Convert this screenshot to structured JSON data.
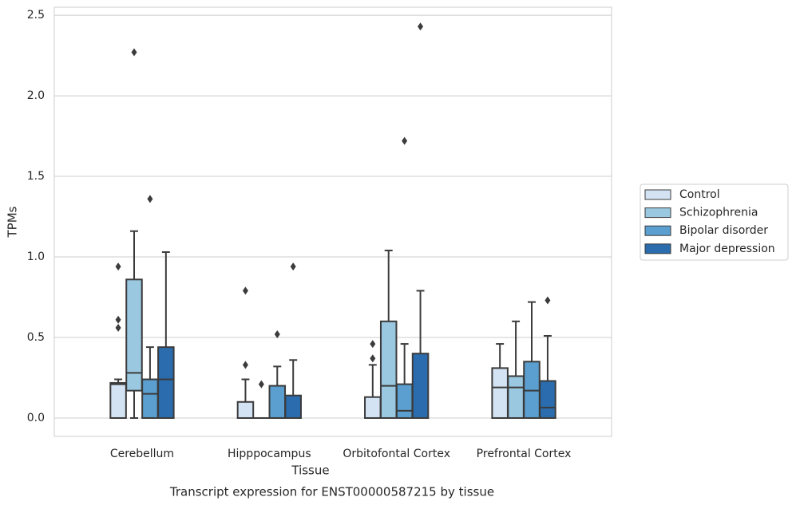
{
  "chart_data": {
    "type": "box",
    "xlabel": "Tissue",
    "ylabel": "TPMs",
    "title": "Transcript expression for ENST00000587215 by tissue",
    "categories": [
      "Cerebellum",
      "Hipppocampus",
      "Orbitofontal Cortex",
      "Prefrontal Cortex"
    ],
    "ylim": [
      -0.114,
      2.55
    ],
    "yticks": [
      {
        "value": 0,
        "label": "0.0"
      },
      0.5,
      {
        "value": 1,
        "label": "1.0"
      },
      1.5,
      {
        "value": 2,
        "label": "2.0"
      },
      2.5
    ],
    "grid": true,
    "legend": "right",
    "series": [
      {
        "name": "Control",
        "color": "#d3e3f3",
        "whislo": [
          0,
          0,
          0,
          0
        ],
        "q1": [
          0,
          0,
          0,
          0
        ],
        "med": [
          0.21,
          0,
          0,
          0.19
        ],
        "q3": [
          0.218,
          0.1,
          0.13,
          0.31
        ],
        "whishi": [
          0.24,
          0.24,
          0.33,
          0.46
        ],
        "fliers": [
          [
            0.94,
            0.61,
            0.56
          ],
          [
            0.79,
            0.33
          ],
          [
            0.46,
            0.37
          ],
          []
        ]
      },
      {
        "name": "Schizophrenia",
        "color": "#9ac8e0",
        "whislo": [
          0,
          0,
          0,
          0
        ],
        "q1": [
          0.17,
          0,
          0,
          0
        ],
        "med": [
          0.28,
          0,
          0.2,
          0.19
        ],
        "q3": [
          0.86,
          0,
          0.6,
          0.26
        ],
        "whishi": [
          1.16,
          0,
          1.04,
          0.6
        ],
        "fliers": [
          [
            2.27
          ],
          [
            0.21
          ],
          [],
          []
        ]
      },
      {
        "name": "Bipolar disorder",
        "color": "#5a9fcf",
        "whislo": [
          0,
          0,
          0,
          0
        ],
        "q1": [
          0,
          0,
          0,
          0
        ],
        "med": [
          0.15,
          0,
          0.045,
          0.17
        ],
        "q3": [
          0.24,
          0.2,
          0.21,
          0.35
        ],
        "whishi": [
          0.44,
          0.32,
          0.46,
          0.72
        ],
        "fliers": [
          [
            1.36
          ],
          [
            0.52
          ],
          [
            1.72
          ],
          []
        ]
      },
      {
        "name": "Major depression",
        "color": "#2a6cad",
        "whislo": [
          0,
          0,
          0,
          0
        ],
        "q1": [
          0,
          0,
          0,
          0
        ],
        "med": [
          0.24,
          0,
          0,
          0.065
        ],
        "q3": [
          0.44,
          0.14,
          0.4,
          0.23
        ],
        "whishi": [
          1.03,
          0.36,
          0.79,
          0.51
        ],
        "fliers": [
          [],
          [
            0.94
          ],
          [
            2.43
          ],
          [
            0.73
          ]
        ]
      }
    ]
  }
}
